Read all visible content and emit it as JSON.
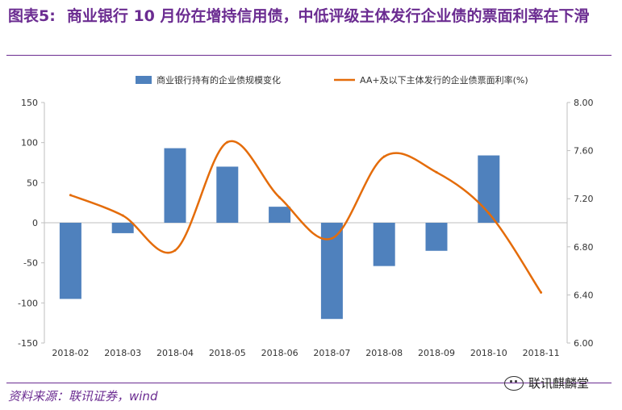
{
  "title": {
    "label": "图表5:",
    "text": "商业银行 10 月份在增持信用债，中低评级主体发行企业债的票面利率在下滑"
  },
  "source": "资料来源：联讯证券，wind",
  "watermark": "联讯麒麟堂",
  "colors": {
    "bar": "#4f81bd",
    "line": "#e46c0a",
    "title": "#6b2c91"
  },
  "chart_data": {
    "type": "bar+line",
    "categories": [
      "2018-02",
      "2018-03",
      "2018-04",
      "2018-05",
      "2018-06",
      "2018-07",
      "2018-08",
      "2018-09",
      "2018-10",
      "2018-11"
    ],
    "legend_position": "top",
    "grid": false,
    "y_left": {
      "ylim": [
        -150,
        150
      ],
      "ticks": [
        "150",
        "100",
        "50",
        "0",
        "-50",
        "-100",
        "-150"
      ]
    },
    "y_right": {
      "ylim": [
        6.0,
        8.0
      ],
      "ticks": [
        "8.00",
        "7.60",
        "7.20",
        "6.80",
        "6.40",
        "6.00"
      ]
    },
    "series": [
      {
        "name": "商业银行持有的企业债规模变化",
        "type": "bar",
        "axis": "left",
        "values": [
          -95,
          -13,
          93,
          70,
          20,
          -120,
          -54,
          -35,
          84,
          null
        ]
      },
      {
        "name": "AA+及以下主体发行的企业债票面利率(%)",
        "type": "line",
        "axis": "right",
        "values": [
          7.23,
          7.06,
          6.77,
          7.67,
          7.21,
          6.87,
          7.55,
          7.42,
          7.08,
          6.42
        ]
      }
    ]
  }
}
